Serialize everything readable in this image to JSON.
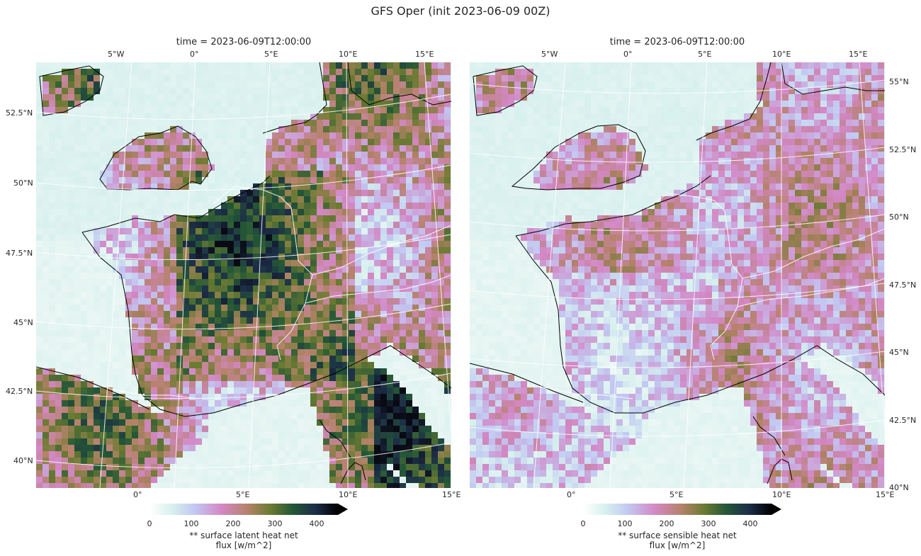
{
  "suptitle": "GFS Oper (init 2023-06-09 00Z)",
  "panels": [
    {
      "title": "time = 2023-06-09T12:00:00",
      "top_ticks": [
        "5°W",
        "0°",
        "5°E",
        "10°E",
        "15°E"
      ],
      "bottom_ticks": [
        "0°",
        "5°E",
        "10°E",
        "15°E"
      ],
      "side_ticks": [
        "52.5°N",
        "50°N",
        "47.5°N",
        "45°N",
        "42.5°N",
        "40°N"
      ],
      "colorbar_ticks": [
        "0",
        "100",
        "200",
        "300",
        "400"
      ],
      "colorbar_label_line1": "** surface latent heat net",
      "colorbar_label_line2": "flux [w/m^2]",
      "field": "surface latent heat net flux",
      "typical_range": [
        0,
        450
      ]
    },
    {
      "title": "time = 2023-06-09T12:00:00",
      "top_ticks": [
        "5°W",
        "0°",
        "5°E",
        "10°E",
        "15°E"
      ],
      "bottom_ticks": [
        "0°",
        "5°E",
        "10°E",
        "15°E"
      ],
      "side_ticks": [
        "55°N",
        "52.5°N",
        "50°N",
        "47.5°N",
        "45°N",
        "42.5°N",
        "40°N"
      ],
      "colorbar_ticks": [
        "0",
        "100",
        "200",
        "300",
        "400"
      ],
      "colorbar_label_line1": "** surface sensible heat net",
      "colorbar_label_line2": "flux [w/m^2]",
      "field": "surface sensible heat net flux",
      "typical_range": [
        50,
        260
      ]
    }
  ],
  "colormap": "cubehelix_r",
  "colors": {
    "ocean_low": "#eef8f5",
    "coastline": "#000000",
    "borders": "#ffffff",
    "gridlines": "#ffffff"
  }
}
